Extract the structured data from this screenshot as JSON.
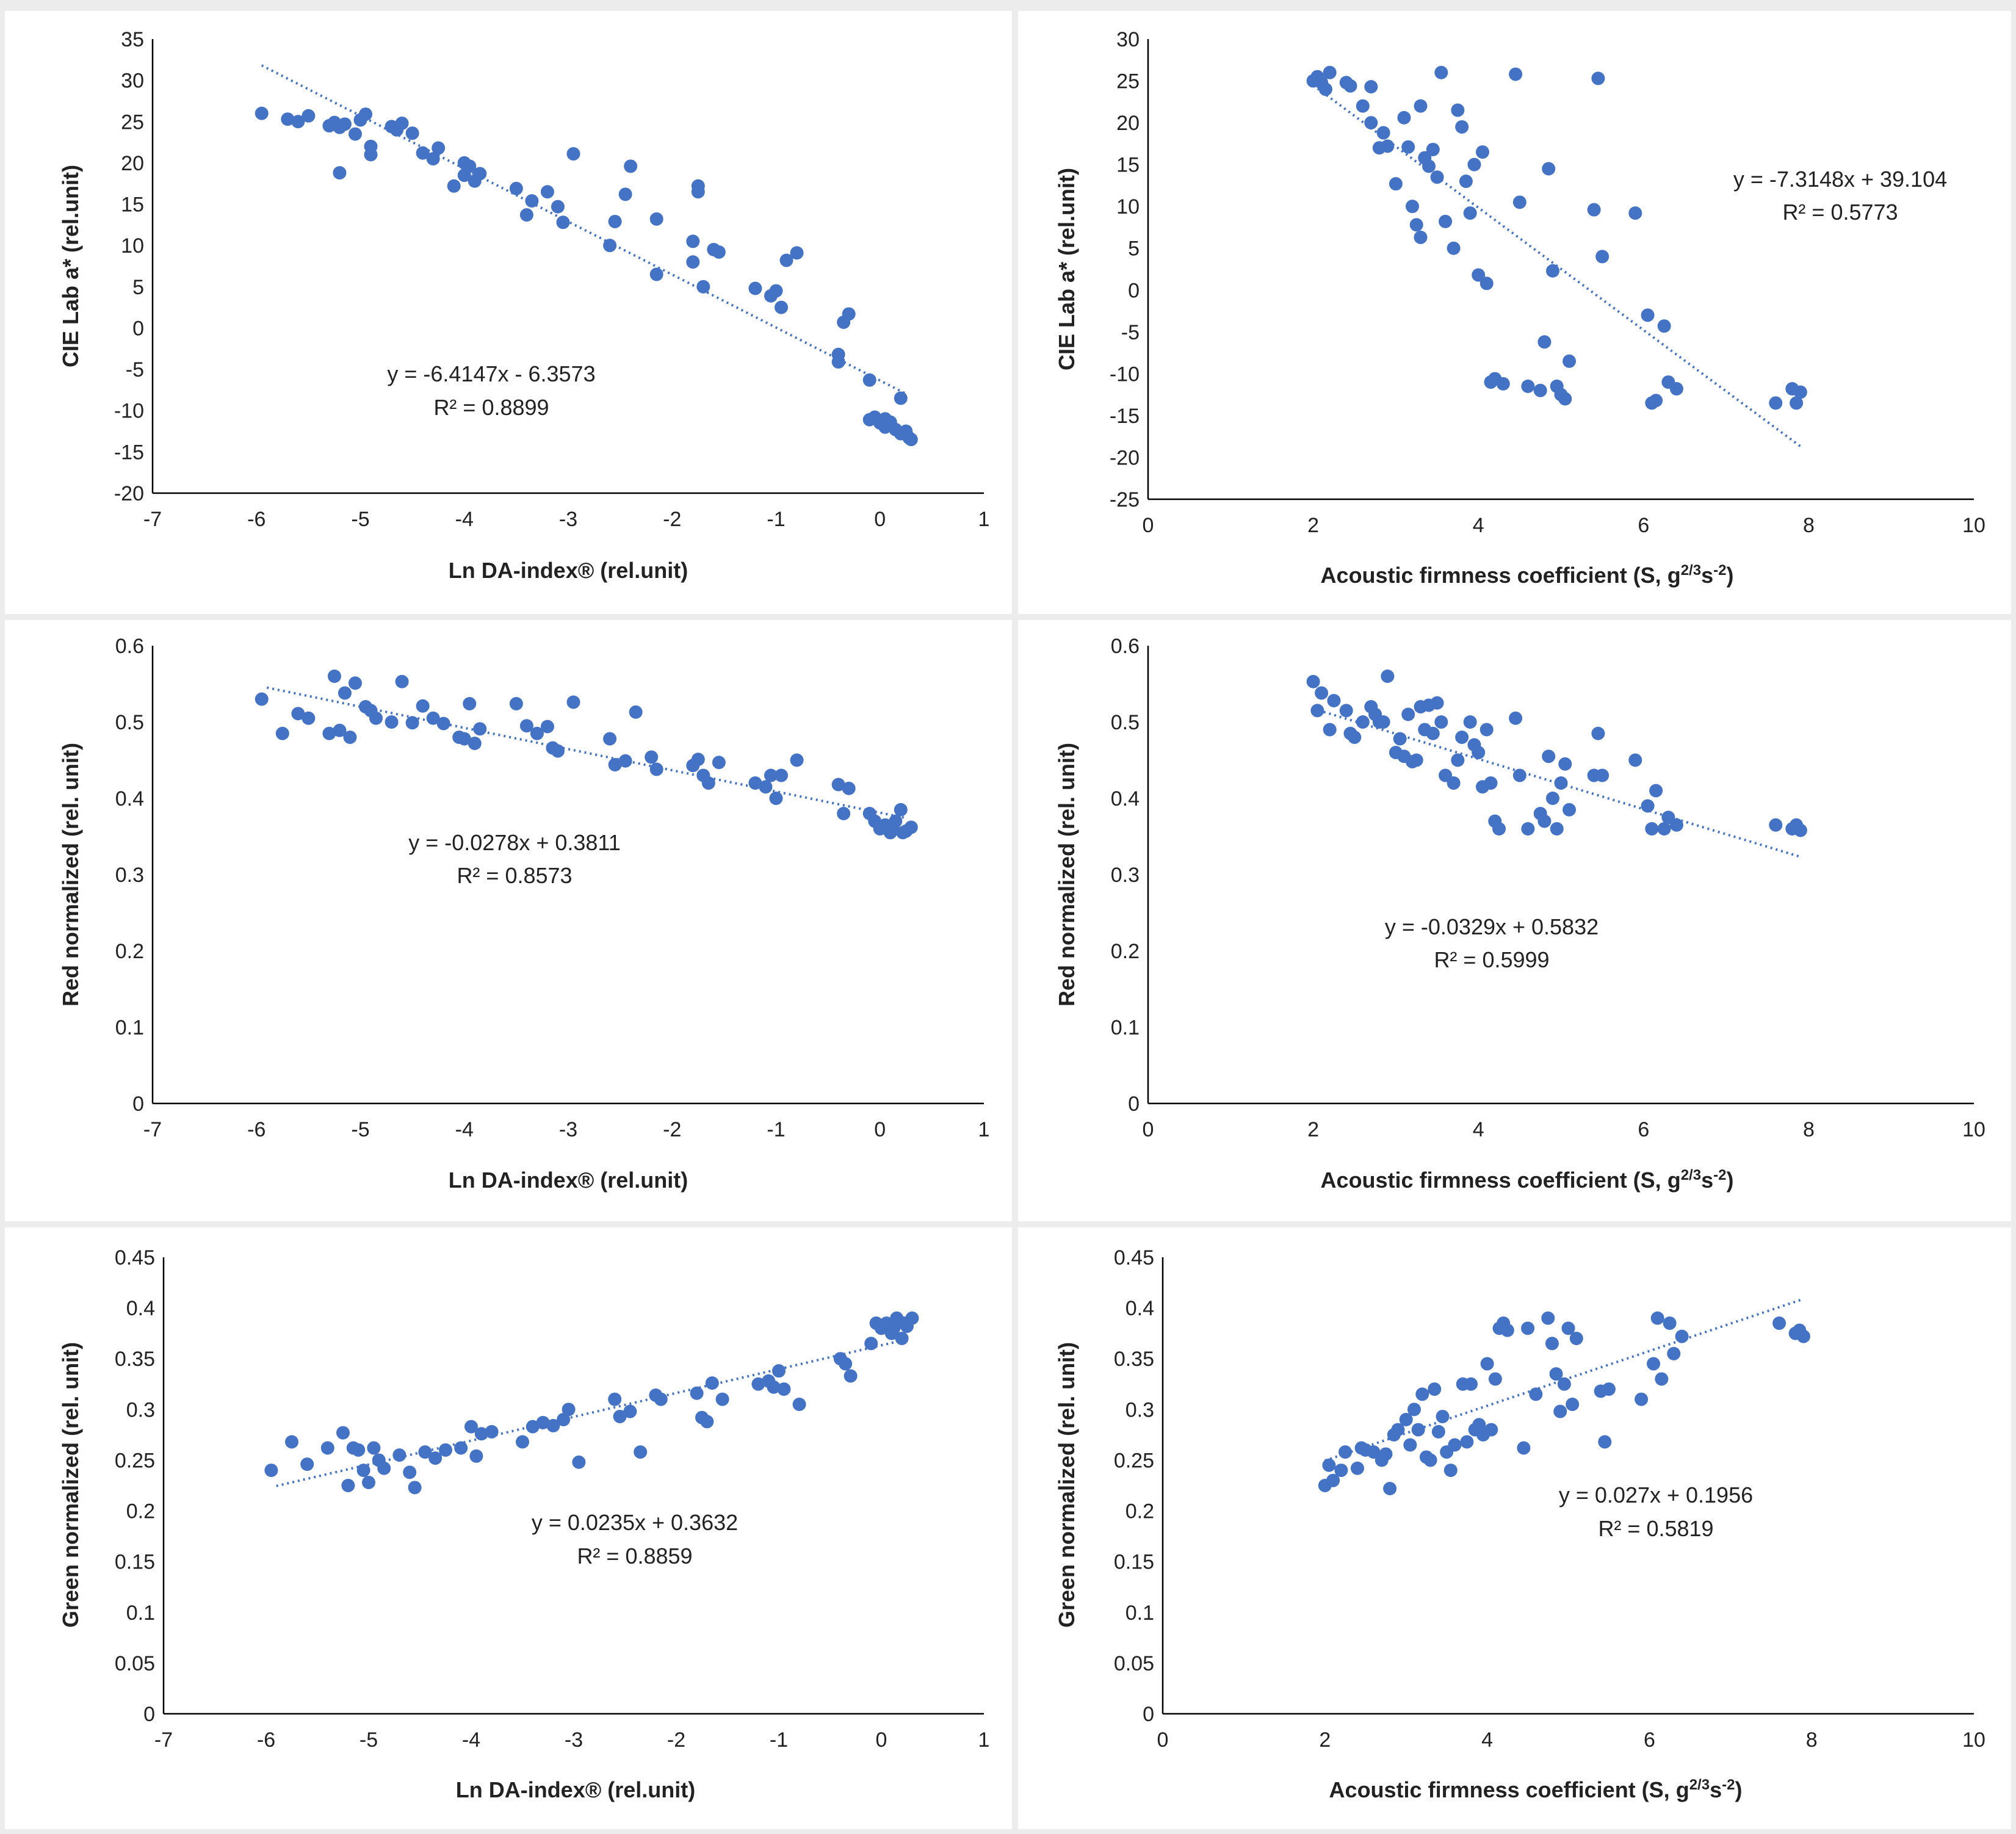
{
  "colors": {
    "series": "#4472c4",
    "background": "#ffffff",
    "panel_separator": "#ececec",
    "axis": "#000000",
    "text": "#222222"
  },
  "chart_data": [
    {
      "type": "scatter",
      "xlabel": "Ln DA-index® (rel.unit)",
      "ylabel": "CIE Lab a* (rel.unit)",
      "xlim": [
        -7,
        1
      ],
      "ylim": [
        -20,
        35
      ],
      "x_ticks": [
        -7,
        -6,
        -5,
        -4,
        -3,
        -2,
        -1,
        0,
        1
      ],
      "y_ticks": [
        35,
        30,
        25,
        20,
        15,
        10,
        5,
        0,
        -5,
        -10,
        -15,
        -20
      ],
      "trendline": {
        "slope": -6.4147,
        "intercept": -6.3573,
        "x_range": [
          -5.95,
          0.25
        ]
      },
      "equation": "y = -6.4147x - 6.3573",
      "r2": "R² = 0.8899",
      "x": [
        -5.95,
        -5.7,
        -5.6,
        -5.5,
        -5.3,
        -5.25,
        -5.2,
        -5.2,
        -5.15,
        -5.05,
        -5.0,
        -4.95,
        -4.9,
        -4.9,
        -4.7,
        -4.65,
        -4.6,
        -4.5,
        -4.4,
        -4.3,
        -4.25,
        -4.1,
        -4.0,
        -4.0,
        -3.95,
        -3.9,
        -3.85,
        -3.5,
        -3.4,
        -3.35,
        -3.2,
        -3.1,
        -3.05,
        -2.95,
        -2.6,
        -2.55,
        -2.45,
        -2.4,
        -2.15,
        -2.15,
        -1.8,
        -1.8,
        -1.75,
        -1.75,
        -1.7,
        -1.6,
        -1.55,
        -1.2,
        -1.05,
        -1.0,
        -0.95,
        -0.9,
        -0.8,
        -0.4,
        -0.4,
        -0.35,
        -0.3,
        -0.1,
        -0.1,
        -0.05,
        0.0,
        0.05,
        0.05,
        0.1,
        0.15,
        0.2,
        0.2,
        0.25,
        0.28,
        0.3
      ],
      "y": [
        26,
        25.3,
        25,
        25.7,
        24.5,
        24.9,
        18.8,
        24.3,
        24.7,
        23.5,
        25.2,
        25.9,
        22,
        21,
        24.4,
        24,
        24.8,
        23.6,
        21.2,
        20.5,
        21.8,
        17.2,
        20,
        18.5,
        19.6,
        17.8,
        18.7,
        16.9,
        13.7,
        15.4,
        16.5,
        14.7,
        12.8,
        21.1,
        10,
        12.9,
        16.2,
        19.6,
        13.2,
        6.5,
        10.5,
        8,
        16.5,
        17.2,
        5,
        9.5,
        9.2,
        4.8,
        3.9,
        4.5,
        2.5,
        8.2,
        9.1,
        -3.2,
        -4.1,
        0.7,
        1.7,
        -6.3,
        -11.1,
        -10.8,
        -11.5,
        -11,
        -12,
        -11.4,
        -12.3,
        -12.8,
        -8.5,
        -12.5,
        -13.3,
        -13.5
      ]
    },
    {
      "type": "scatter",
      "xlabel": "Acoustic firmness coefficient (S, g2/3s-2)",
      "ylabel": "CIE Lab a* (rel.unit)",
      "xlim": [
        0,
        10
      ],
      "ylim": [
        -25,
        30
      ],
      "x_ticks": [
        0,
        2,
        4,
        6,
        8,
        10
      ],
      "y_ticks": [
        30,
        25,
        20,
        15,
        10,
        5,
        0,
        -5,
        -10,
        -15,
        -20,
        -25
      ],
      "trendline": {
        "slope": -7.3148,
        "intercept": 39.104,
        "x_range": [
          2.0,
          7.9
        ]
      },
      "equation": "y = -7.3148x + 39.104",
      "r2": "R² = 0.5773",
      "x": [
        2.0,
        2.05,
        2.1,
        2.15,
        2.2,
        2.4,
        2.45,
        2.6,
        2.7,
        2.7,
        2.8,
        2.85,
        2.9,
        3.0,
        3.1,
        3.15,
        3.2,
        3.25,
        3.3,
        3.3,
        3.35,
        3.4,
        3.45,
        3.5,
        3.55,
        3.6,
        3.7,
        3.75,
        3.8,
        3.85,
        3.9,
        3.95,
        4.0,
        4.05,
        4.1,
        4.15,
        4.2,
        4.3,
        4.45,
        4.5,
        4.6,
        4.75,
        4.8,
        4.85,
        4.9,
        4.95,
        5.0,
        5.05,
        5.1,
        5.4,
        5.45,
        5.5,
        5.9,
        6.05,
        6.1,
        6.15,
        6.25,
        6.3,
        6.4,
        7.6,
        7.8,
        7.85,
        7.9
      ],
      "y": [
        25,
        25.5,
        24.8,
        24,
        26,
        24.8,
        24.4,
        22,
        24.3,
        20,
        17,
        18.8,
        17.2,
        12.7,
        20.6,
        17.1,
        10,
        7.8,
        6.3,
        22,
        15.8,
        14.8,
        16.8,
        13.5,
        26,
        8.2,
        5,
        21.5,
        19.5,
        13,
        9.2,
        15,
        1.8,
        16.5,
        0.8,
        -11,
        -10.6,
        -11.2,
        25.8,
        10.5,
        -11.5,
        -12,
        -6.2,
        14.5,
        2.3,
        -11.5,
        -12.5,
        -13,
        -8.5,
        9.6,
        25.3,
        4,
        9.2,
        -3,
        -13.5,
        -13.2,
        -4.3,
        -11,
        -11.8,
        -13.5,
        -11.8,
        -13.5,
        -12.2
      ]
    },
    {
      "type": "scatter",
      "xlabel": "Ln DA-index® (rel.unit)",
      "ylabel": "Red normalized (rel. unit)",
      "xlim": [
        -7,
        1
      ],
      "ylim": [
        0,
        0.6
      ],
      "x_ticks": [
        -7,
        -6,
        -5,
        -4,
        -3,
        -2,
        -1,
        0,
        1
      ],
      "y_ticks": [
        0.6,
        0.5,
        0.4,
        0.3,
        0.2,
        0.1,
        0
      ],
      "trendline": {
        "slope": -0.0278,
        "intercept": 0.3811,
        "x_range": [
          -5.9,
          0.25
        ]
      },
      "equation": "y = -0.0278x + 0.3811",
      "r2": "R² = 0.8573",
      "x": [
        -5.95,
        -5.75,
        -5.6,
        -5.5,
        -5.3,
        -5.25,
        -5.2,
        -5.15,
        -5.1,
        -5.05,
        -4.95,
        -4.9,
        -4.85,
        -4.7,
        -4.6,
        -4.5,
        -4.4,
        -4.3,
        -4.2,
        -4.05,
        -4.0,
        -3.95,
        -3.9,
        -3.85,
        -3.5,
        -3.4,
        -3.3,
        -3.2,
        -3.15,
        -3.1,
        -2.95,
        -2.6,
        -2.55,
        -2.45,
        -2.35,
        -2.2,
        -2.15,
        -1.8,
        -1.75,
        -1.7,
        -1.65,
        -1.55,
        -1.2,
        -1.1,
        -1.05,
        -1.0,
        -0.95,
        -0.8,
        -0.4,
        -0.35,
        -0.3,
        -0.1,
        -0.05,
        0.0,
        0.05,
        0.1,
        0.12,
        0.15,
        0.2,
        0.22,
        0.25,
        0.3
      ],
      "y": [
        0.53,
        0.485,
        0.511,
        0.505,
        0.485,
        0.56,
        0.489,
        0.538,
        0.48,
        0.551,
        0.52,
        0.515,
        0.505,
        0.5,
        0.553,
        0.499,
        0.521,
        0.505,
        0.498,
        0.48,
        0.478,
        0.524,
        0.472,
        0.491,
        0.524,
        0.495,
        0.485,
        0.494,
        0.466,
        0.462,
        0.526,
        0.478,
        0.444,
        0.449,
        0.513,
        0.454,
        0.438,
        0.443,
        0.451,
        0.43,
        0.42,
        0.447,
        0.42,
        0.415,
        0.43,
        0.4,
        0.43,
        0.45,
        0.418,
        0.38,
        0.413,
        0.38,
        0.37,
        0.36,
        0.365,
        0.355,
        0.362,
        0.37,
        0.385,
        0.355,
        0.357,
        0.362
      ]
    },
    {
      "type": "scatter",
      "xlabel": "Acoustic firmness coefficient (S, g2/3s-2)",
      "ylabel": "Red normalized (rel. unit)",
      "xlim": [
        0,
        10
      ],
      "ylim": [
        0,
        0.6
      ],
      "x_ticks": [
        0,
        2,
        4,
        6,
        8,
        10
      ],
      "y_ticks": [
        0.6,
        0.5,
        0.4,
        0.3,
        0.2,
        0.1,
        0
      ],
      "trendline": {
        "slope": -0.0329,
        "intercept": 0.5832,
        "x_range": [
          2.0,
          7.9
        ]
      },
      "equation": "y = -0.0329x + 0.5832",
      "r2": "R² = 0.5999",
      "x": [
        2.0,
        2.05,
        2.1,
        2.2,
        2.25,
        2.4,
        2.45,
        2.5,
        2.6,
        2.7,
        2.75,
        2.8,
        2.85,
        2.9,
        3.0,
        3.05,
        3.1,
        3.15,
        3.2,
        3.25,
        3.3,
        3.35,
        3.4,
        3.45,
        3.5,
        3.55,
        3.6,
        3.7,
        3.75,
        3.8,
        3.9,
        3.95,
        4.0,
        4.05,
        4.1,
        4.15,
        4.2,
        4.25,
        4.45,
        4.5,
        4.6,
        4.75,
        4.8,
        4.85,
        4.9,
        4.95,
        5.0,
        5.05,
        5.1,
        5.4,
        5.45,
        5.5,
        5.9,
        6.05,
        6.1,
        6.15,
        6.25,
        6.3,
        6.4,
        7.6,
        7.8,
        7.85,
        7.9
      ],
      "y": [
        0.553,
        0.515,
        0.538,
        0.49,
        0.528,
        0.515,
        0.485,
        0.48,
        0.5,
        0.52,
        0.51,
        0.5,
        0.5,
        0.56,
        0.46,
        0.478,
        0.455,
        0.51,
        0.448,
        0.45,
        0.52,
        0.49,
        0.522,
        0.485,
        0.525,
        0.5,
        0.43,
        0.42,
        0.45,
        0.48,
        0.5,
        0.47,
        0.46,
        0.415,
        0.49,
        0.42,
        0.37,
        0.36,
        0.505,
        0.43,
        0.36,
        0.38,
        0.37,
        0.455,
        0.4,
        0.36,
        0.42,
        0.445,
        0.385,
        0.43,
        0.485,
        0.43,
        0.45,
        0.39,
        0.36,
        0.41,
        0.36,
        0.375,
        0.365,
        0.365,
        0.36,
        0.365,
        0.358
      ]
    },
    {
      "type": "scatter",
      "xlabel": "Ln DA-index® (rel.unit)",
      "ylabel": "Green normalized (rel. unit)",
      "xlim": [
        -7,
        1
      ],
      "ylim": [
        0,
        0.45
      ],
      "x_ticks": [
        -7,
        -6,
        -5,
        -4,
        -3,
        -2,
        -1,
        0,
        1
      ],
      "y_ticks": [
        0.45,
        0.4,
        0.35,
        0.3,
        0.25,
        0.2,
        0.15,
        0.1,
        0.05,
        0
      ],
      "trendline": {
        "slope": 0.0235,
        "intercept": 0.3632,
        "x_range": [
          -5.9,
          0.25
        ]
      },
      "equation": "y = 0.0235x + 0.3632",
      "r2": "R² = 0.8859",
      "x": [
        -5.95,
        -5.75,
        -5.6,
        -5.4,
        -5.25,
        -5.2,
        -5.15,
        -5.1,
        -5.05,
        -5.0,
        -4.95,
        -4.9,
        -4.85,
        -4.7,
        -4.6,
        -4.55,
        -4.45,
        -4.35,
        -4.25,
        -4.1,
        -4.0,
        -3.95,
        -3.9,
        -3.8,
        -3.5,
        -3.4,
        -3.3,
        -3.2,
        -3.1,
        -3.05,
        -2.95,
        -2.6,
        -2.55,
        -2.45,
        -2.35,
        -2.2,
        -2.15,
        -1.8,
        -1.75,
        -1.7,
        -1.65,
        -1.55,
        -1.2,
        -1.1,
        -1.05,
        -1.0,
        -0.95,
        -0.8,
        -0.4,
        -0.35,
        -0.3,
        -0.1,
        -0.05,
        0.0,
        0.05,
        0.1,
        0.12,
        0.15,
        0.2,
        0.22,
        0.25,
        0.3
      ],
      "y": [
        0.24,
        0.268,
        0.246,
        0.262,
        0.277,
        0.225,
        0.262,
        0.26,
        0.24,
        0.228,
        0.262,
        0.25,
        0.242,
        0.255,
        0.238,
        0.223,
        0.258,
        0.252,
        0.26,
        0.262,
        0.283,
        0.254,
        0.276,
        0.278,
        0.268,
        0.283,
        0.287,
        0.284,
        0.29,
        0.3,
        0.248,
        0.31,
        0.293,
        0.298,
        0.258,
        0.314,
        0.31,
        0.316,
        0.292,
        0.288,
        0.326,
        0.31,
        0.325,
        0.328,
        0.322,
        0.338,
        0.32,
        0.305,
        0.35,
        0.345,
        0.333,
        0.365,
        0.385,
        0.38,
        0.385,
        0.375,
        0.38,
        0.39,
        0.37,
        0.385,
        0.382,
        0.39
      ]
    },
    {
      "type": "scatter",
      "xlabel": "Acoustic firmness coefficient (S, g2/3s-2)",
      "ylabel": "Green normalized (rel. unit)",
      "xlim": [
        0,
        10
      ],
      "ylim": [
        0,
        0.45
      ],
      "x_ticks": [
        0,
        2,
        4,
        6,
        8,
        10
      ],
      "y_ticks": [
        0.45,
        0.4,
        0.35,
        0.3,
        0.25,
        0.2,
        0.15,
        0.1,
        0.05,
        0
      ],
      "trendline": {
        "slope": 0.027,
        "intercept": 0.1956,
        "x_range": [
          2.0,
          7.9
        ]
      },
      "equation": "y = 0.027x + 0.1956",
      "r2": "R² = 0.5819",
      "x": [
        2.0,
        2.05,
        2.1,
        2.2,
        2.25,
        2.4,
        2.45,
        2.5,
        2.6,
        2.7,
        2.75,
        2.8,
        2.85,
        2.9,
        3.0,
        3.05,
        3.1,
        3.15,
        3.2,
        3.25,
        3.3,
        3.35,
        3.4,
        3.45,
        3.5,
        3.55,
        3.6,
        3.7,
        3.75,
        3.8,
        3.85,
        3.9,
        3.95,
        4.0,
        4.05,
        4.1,
        4.15,
        4.2,
        4.25,
        4.45,
        4.5,
        4.6,
        4.75,
        4.8,
        4.85,
        4.9,
        4.95,
        5.0,
        5.05,
        5.1,
        5.4,
        5.45,
        5.5,
        5.9,
        6.05,
        6.1,
        6.15,
        6.25,
        6.3,
        6.4,
        7.6,
        7.8,
        7.85,
        7.9
      ],
      "y": [
        0.225,
        0.245,
        0.23,
        0.24,
        0.258,
        0.242,
        0.262,
        0.26,
        0.258,
        0.25,
        0.256,
        0.222,
        0.275,
        0.28,
        0.29,
        0.265,
        0.3,
        0.28,
        0.315,
        0.253,
        0.25,
        0.32,
        0.278,
        0.293,
        0.258,
        0.24,
        0.265,
        0.325,
        0.268,
        0.325,
        0.28,
        0.285,
        0.275,
        0.345,
        0.28,
        0.33,
        0.38,
        0.385,
        0.378,
        0.262,
        0.38,
        0.315,
        0.39,
        0.365,
        0.335,
        0.298,
        0.325,
        0.38,
        0.305,
        0.37,
        0.318,
        0.268,
        0.32,
        0.31,
        0.345,
        0.39,
        0.33,
        0.385,
        0.355,
        0.372,
        0.385,
        0.375,
        0.378,
        0.372
      ]
    }
  ],
  "eq_text": [
    {
      "equation": "y = -6.4147x - 6.3573",
      "r2": "R² = 0.8899"
    },
    {
      "equation": "y = -7.3148x + 39.104",
      "r2": "R² = 0.5773"
    },
    {
      "equation": "y = -0.0278x + 0.3811",
      "r2": "R² = 0.8573"
    },
    {
      "equation": "y = -0.0329x + 0.5832",
      "r2": "R² = 0.5999"
    },
    {
      "equation": "y = 0.0235x + 0.3632",
      "r2": "R² = 0.8859"
    },
    {
      "equation": "y = 0.027x + 0.1956",
      "r2": "R² = 0.5819"
    }
  ],
  "axis_titles": [
    {
      "x": "Ln DA-index® (rel.unit)",
      "y": "CIE Lab a* (rel.unit)"
    },
    {
      "x_prefix": "Acoustic firmness coefficient (S, g",
      "x_sup1": "2/3",
      "x_mid": "s",
      "x_sup2": "-2",
      "x_suffix": ")",
      "y": "CIE Lab a* (rel.unit)"
    },
    {
      "x": "Ln DA-index® (rel.unit)",
      "y": "Red normalized (rel. unit)"
    },
    {
      "x_prefix": "Acoustic firmness coefficient (S, g",
      "x_sup1": "2/3",
      "x_mid": "s",
      "x_sup2": "-2",
      "x_suffix": ")",
      "y": "Red normalized (rel. unit)"
    },
    {
      "x": "Ln DA-index® (rel.unit)",
      "y": "Green normalized (rel. unit)"
    },
    {
      "x_prefix": "Acoustic firmness coefficient (S, g",
      "x_sup1": "2/3",
      "x_mid": "s",
      "x_sup2": "-2",
      "x_suffix": ")",
      "y": "Green normalized (rel. unit)"
    }
  ]
}
